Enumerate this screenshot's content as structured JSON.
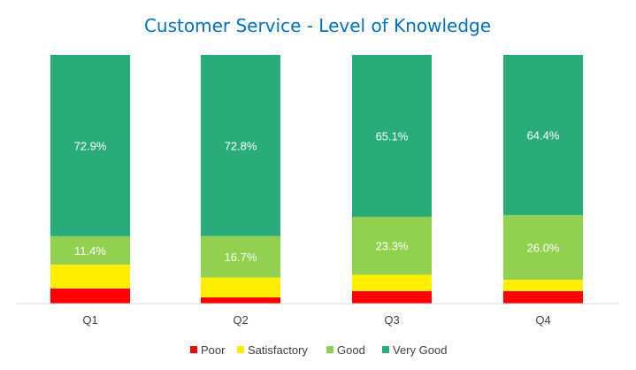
{
  "chart_data": {
    "type": "bar",
    "stacked": true,
    "normalized": true,
    "title": "Customer Service - Level of Knowledge",
    "categories": [
      "Q1",
      "Q2",
      "Q3",
      "Q4"
    ],
    "series": [
      {
        "name": "Poor",
        "color": "#ff0000",
        "values": [
          6.1,
          2.5,
          5.0,
          5.0
        ]
      },
      {
        "name": "Satisfactory",
        "color": "#ffee00",
        "values": [
          9.6,
          8.0,
          6.6,
          4.6
        ]
      },
      {
        "name": "Good",
        "color": "#92d050",
        "values": [
          11.4,
          16.7,
          23.3,
          26.0
        ],
        "labels": [
          "11.4%",
          "16.7%",
          "23.3%",
          "26.0%"
        ]
      },
      {
        "name": "Very Good",
        "color": "#2aab7a",
        "values": [
          72.9,
          72.8,
          65.1,
          64.4
        ],
        "labels": [
          "72.9%",
          "72.8%",
          "65.1%",
          "64.4%"
        ]
      }
    ],
    "ylim": [
      0,
      100
    ],
    "grid": false,
    "legend_position": "bottom",
    "title_color": "#0070c0"
  }
}
